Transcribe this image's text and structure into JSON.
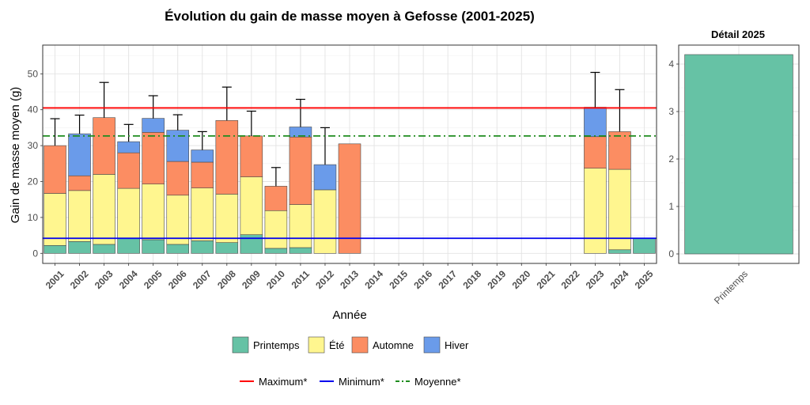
{
  "chart_data": [
    {
      "type": "bar",
      "stacked": true,
      "title": "Évolution du gain de masse moyen à Gefosse (2001-2025)",
      "xlabel": "Année",
      "ylabel": "Gain de masse moyen (g)",
      "ylim": [
        -2.8,
        58
      ],
      "yticks": [
        0,
        10,
        20,
        30,
        40,
        50
      ],
      "grid": true,
      "categories": [
        "2001",
        "2002",
        "2003",
        "2004",
        "2005",
        "2006",
        "2007",
        "2008",
        "2009",
        "2010",
        "2011",
        "2012",
        "2013",
        "2014",
        "2015",
        "2016",
        "2017",
        "2018",
        "2019",
        "2020",
        "2021",
        "2022",
        "2023",
        "2024",
        "2025"
      ],
      "series": [
        {
          "name": "Printemps",
          "color": "#66c2a5",
          "values": [
            2.2,
            3.3,
            2.5,
            4.3,
            3.8,
            2.5,
            3.5,
            3.0,
            5.2,
            1.4,
            1.6,
            0,
            0,
            null,
            null,
            null,
            null,
            null,
            null,
            null,
            null,
            null,
            0,
            1.0,
            4.2
          ]
        },
        {
          "name": "Été",
          "color": "#fff68f",
          "values": [
            14.5,
            14.2,
            19.5,
            13.8,
            15.5,
            13.7,
            14.7,
            13.5,
            16.1,
            10.5,
            12.0,
            17.7,
            0,
            null,
            null,
            null,
            null,
            null,
            null,
            null,
            null,
            null,
            23.7,
            22.4,
            0
          ]
        },
        {
          "name": "Automne",
          "color": "#fc8d62",
          "values": [
            13.3,
            4.1,
            15.8,
            9.9,
            14.4,
            9.4,
            7.2,
            20.5,
            11.4,
            6.8,
            18.8,
            0,
            30.5,
            null,
            null,
            null,
            null,
            null,
            null,
            null,
            null,
            null,
            8.8,
            10.5,
            0
          ]
        },
        {
          "name": "Hiver",
          "color": "#6a9bea",
          "values": [
            0,
            11.7,
            0,
            3.1,
            3.9,
            8.7,
            3.4,
            0,
            0,
            0,
            2.8,
            7.0,
            0,
            null,
            null,
            null,
            null,
            null,
            null,
            null,
            null,
            null,
            8.2,
            0,
            0
          ]
        }
      ],
      "error_bars_upper": [
        37.5,
        38.5,
        47.6,
        35.9,
        43.9,
        38.6,
        33.9,
        46.3,
        39.6,
        23.9,
        42.9,
        35.0,
        null,
        null,
        null,
        null,
        null,
        null,
        null,
        null,
        null,
        null,
        50.4,
        45.6,
        null
      ],
      "reference_lines": [
        {
          "name": "Maximum*",
          "value": 40.5,
          "color": "#ff0000",
          "style": "solid"
        },
        {
          "name": "Minimum*",
          "value": 4.2,
          "color": "#0000ee",
          "style": "solid"
        },
        {
          "name": "Moyenne*",
          "value": 32.7,
          "color": "#1f8c1f",
          "style": "dashdot"
        }
      ]
    },
    {
      "type": "bar",
      "title": "Détail 2025",
      "categories": [
        "Printemps"
      ],
      "values": [
        4.2
      ],
      "color": "#66c2a5",
      "ylim": [
        -0.2,
        4.4
      ],
      "yticks": [
        0,
        1,
        2,
        3,
        4
      ],
      "grid": true
    }
  ],
  "legend": {
    "fill_items": [
      {
        "label": "Printemps",
        "color": "#66c2a5"
      },
      {
        "label": "Été",
        "color": "#fff68f"
      },
      {
        "label": "Automne",
        "color": "#fc8d62"
      },
      {
        "label": "Hiver",
        "color": "#6a9bea"
      }
    ],
    "line_items": [
      {
        "label": "Maximum*",
        "color": "#ff0000",
        "style": "solid"
      },
      {
        "label": "Minimum*",
        "color": "#0000ee",
        "style": "solid"
      },
      {
        "label": "Moyenne*",
        "color": "#1f8c1f",
        "style": "dashdot"
      }
    ]
  }
}
